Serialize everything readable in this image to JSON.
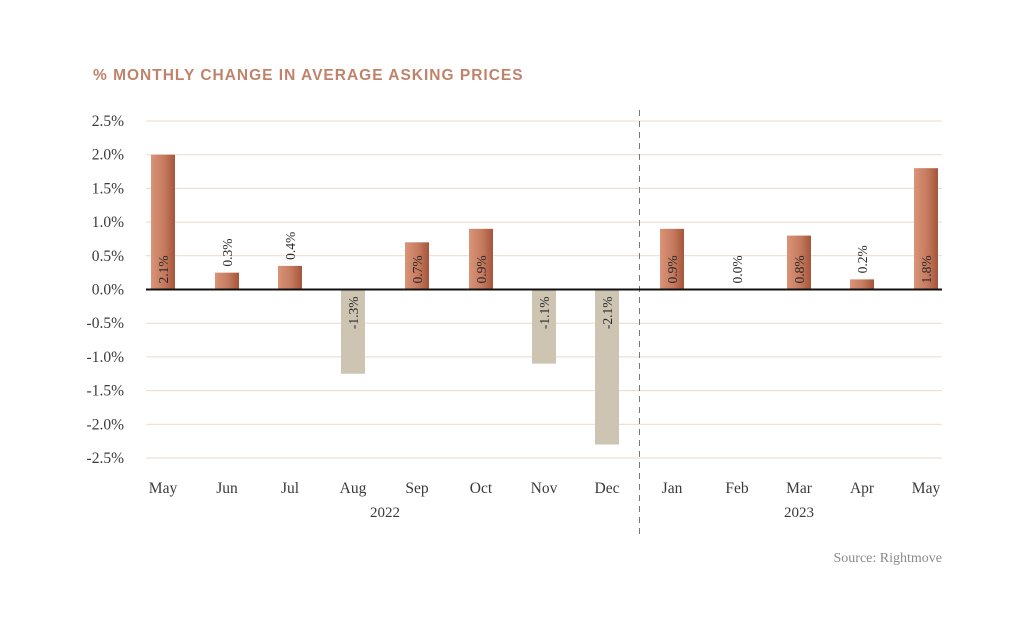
{
  "chart_data": {
    "type": "bar",
    "title": "% MONTHLY CHANGE IN AVERAGE ASKING PRICES",
    "categories": [
      "May",
      "Jun",
      "Jul",
      "Aug",
      "Sep",
      "Oct",
      "Nov",
      "Dec",
      "Jan",
      "Feb",
      "Mar",
      "Apr",
      "May"
    ],
    "values": [
      2.1,
      0.3,
      0.4,
      -1.3,
      0.7,
      0.9,
      -1.1,
      -2.1,
      0.9,
      0.0,
      0.8,
      0.2,
      1.8
    ],
    "data_labels": [
      "2.1%",
      "0.3%",
      "0.4%",
      "-1.3%",
      "0.7%",
      "0.9%",
      "-1.1%",
      "-2.1%",
      "0.9%",
      "0.0%",
      "0.8%",
      "0.2%",
      "1.8%"
    ],
    "bar_heights_shown": [
      2.0,
      0.25,
      0.35,
      -1.25,
      0.7,
      0.9,
      -1.1,
      -2.3,
      0.9,
      0.0,
      0.8,
      0.15,
      1.8
    ],
    "groups": [
      {
        "label": "2022",
        "count": 8
      },
      {
        "label": "2023",
        "count": 5
      }
    ],
    "yticks": [
      "2.5%",
      "2.0%",
      "1.5%",
      "1.0%",
      "0.5%",
      "0.0%",
      "-0.5%",
      "-1.0%",
      "-1.5%",
      "-2.0%",
      "-2.5%"
    ],
    "ylim": [
      -2.5,
      2.5
    ],
    "xlabel": "",
    "ylabel": "",
    "grid": true,
    "legend": "none",
    "colors": {
      "positive": "#c97f63",
      "positive_dark": "#a8563c",
      "negative": "#cdc5b2",
      "title": "#c0836a",
      "grid": "#ead9cc"
    },
    "source": "Source: Rightmove"
  }
}
